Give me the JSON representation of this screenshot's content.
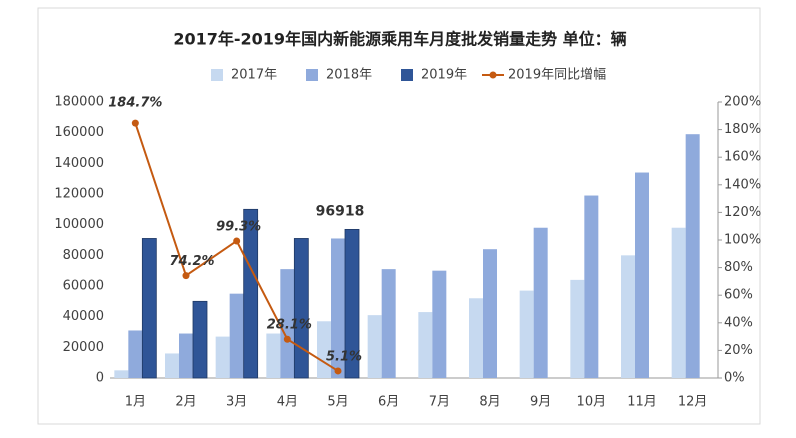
{
  "chart_data": {
    "type": "bar",
    "title": "2017年-2019年国内新能源乘用车月度批发销量走势  单位：辆",
    "categories": [
      "1月",
      "2月",
      "3月",
      "4月",
      "5月",
      "6月",
      "7月",
      "8月",
      "9月",
      "10月",
      "11月",
      "12月"
    ],
    "series": [
      {
        "name": "2017年",
        "color": "#c6d9f0",
        "values": [
          5000,
          16000,
          27000,
          29000,
          37000,
          41000,
          43000,
          52000,
          57000,
          64000,
          80000,
          98000
        ]
      },
      {
        "name": "2018年",
        "color": "#8faadc",
        "values": [
          31000,
          29000,
          55000,
          71000,
          91000,
          71000,
          70000,
          84000,
          98000,
          119000,
          134000,
          159000
        ]
      },
      {
        "name": "2019年",
        "color": "#2f5597",
        "values": [
          91000,
          50000,
          110000,
          91000,
          96918,
          null,
          null,
          null,
          null,
          null,
          null,
          null
        ]
      },
      {
        "name": "2019年同比增幅",
        "color": "#c55a11",
        "type": "line",
        "axis": "y2",
        "values": [
          184.7,
          74.2,
          99.3,
          28.1,
          5.1,
          null,
          null,
          null,
          null,
          null,
          null,
          null
        ],
        "value_labels": [
          "184.7%",
          "74.2%",
          "99.3%",
          "28.1%",
          "5.1%",
          null,
          null,
          null,
          null,
          null,
          null,
          null
        ]
      }
    ],
    "ylim": [
      0,
      180000
    ],
    "yticks": [
      0,
      20000,
      40000,
      60000,
      80000,
      100000,
      120000,
      140000,
      160000,
      180000
    ],
    "y2lim": [
      0,
      200
    ],
    "y2ticks": [
      {
        "value": 0,
        "label": "0%"
      },
      {
        "value": 20,
        "label": "20%"
      },
      {
        "value": 40,
        "label": "40%"
      },
      {
        "value": 60,
        "label": "60%"
      },
      {
        "value": 80,
        "label": "80%"
      },
      {
        "value": 100,
        "label": "100%"
      },
      {
        "value": 120,
        "label": "120%"
      },
      {
        "value": 140,
        "label": "140%"
      },
      {
        "value": 160,
        "label": "160%"
      },
      {
        "value": 180,
        "label": "180%"
      },
      {
        "value": 200,
        "label": "200%"
      }
    ],
    "grid": false,
    "legend": "top"
  }
}
